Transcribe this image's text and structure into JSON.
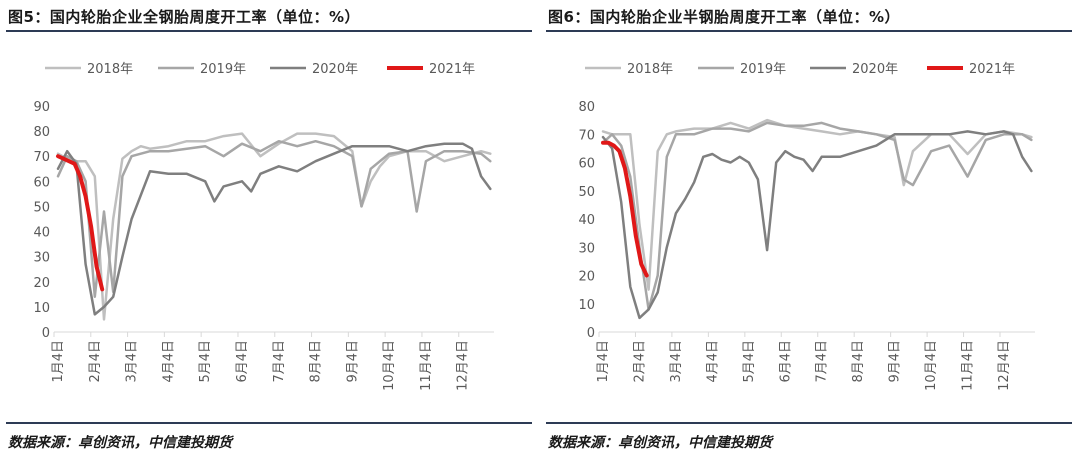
{
  "source_label": "数据来源：卓创资讯，中信建投期货",
  "chart_data": [
    {
      "type": "line",
      "title": "图5：国内轮胎企业全钢胎周度开工率（单位：%）",
      "x_categories": [
        "1月4日",
        "2月4日",
        "3月4日",
        "4月4日",
        "5月4日",
        "6月4日",
        "7月4日",
        "8月4日",
        "9月4日",
        "10月4日",
        "11月4日",
        "12月4日"
      ],
      "ylim": [
        0,
        90
      ],
      "yticks": [
        0,
        10,
        20,
        30,
        40,
        50,
        60,
        70,
        80,
        90
      ],
      "grid": false,
      "legend_position": "top",
      "series": [
        {
          "name": "2018年",
          "color": "#bfbfbf",
          "width": 2.5,
          "x": [
            0,
            0.25,
            0.5,
            0.75,
            1,
            1.25,
            1.5,
            1.75,
            2,
            2.25,
            2.5,
            3,
            3.5,
            4,
            4.5,
            5,
            5.5,
            6,
            6.5,
            7,
            7.5,
            8,
            8.25,
            8.5,
            8.75,
            9,
            9.5,
            10,
            10.5,
            11,
            11.5,
            11.75
          ],
          "y": [
            71,
            69,
            68,
            68,
            62,
            5,
            45,
            69,
            72,
            74,
            73,
            74,
            76,
            76,
            78,
            79,
            70,
            75,
            79,
            79,
            78,
            72,
            50,
            60,
            66,
            70,
            72,
            72,
            68,
            70,
            72,
            71
          ]
        },
        {
          "name": "2019年",
          "color": "#a6a6a6",
          "width": 2.5,
          "x": [
            0,
            0.25,
            0.5,
            0.75,
            1,
            1.25,
            1.5,
            1.75,
            2,
            2.5,
            3,
            3.5,
            4,
            4.5,
            5,
            5.5,
            6,
            6.5,
            7,
            7.5,
            8,
            8.25,
            8.5,
            9,
            9.5,
            9.75,
            10,
            10.5,
            11,
            11.5,
            11.75
          ],
          "y": [
            62,
            70,
            68,
            60,
            14,
            48,
            16,
            62,
            70,
            72,
            72,
            73,
            74,
            70,
            75,
            72,
            76,
            74,
            76,
            74,
            70,
            50,
            65,
            71,
            72,
            48,
            68,
            72,
            72,
            71,
            68
          ]
        },
        {
          "name": "2020年",
          "color": "#7f7f7f",
          "width": 2.5,
          "x": [
            0,
            0.25,
            0.5,
            0.75,
            1,
            1.25,
            1.5,
            1.75,
            2,
            2.5,
            3,
            3.5,
            4,
            4.25,
            4.5,
            5,
            5.25,
            5.5,
            6,
            6.5,
            7,
            7.5,
            8,
            8.5,
            9,
            9.5,
            10,
            10.5,
            11,
            11.25,
            11.5,
            11.75
          ],
          "y": [
            65,
            72,
            67,
            27,
            7,
            10,
            14,
            30,
            45,
            64,
            63,
            63,
            60,
            52,
            58,
            60,
            56,
            63,
            66,
            64,
            68,
            71,
            74,
            74,
            74,
            72,
            74,
            75,
            75,
            73,
            62,
            57
          ]
        },
        {
          "name": "2021年",
          "color": "#e01818",
          "width": 4,
          "x": [
            0,
            0.15,
            0.3,
            0.45,
            0.6,
            0.75,
            0.9,
            1.05,
            1.2
          ],
          "y": [
            70,
            69,
            68,
            67,
            62,
            54,
            42,
            26,
            17
          ]
        }
      ]
    },
    {
      "type": "line",
      "title": "图6：国内轮胎企业半钢胎周度开工率（单位：%）",
      "x_categories": [
        "1月4日",
        "2月4日",
        "3月4日",
        "4月4日",
        "5月4日",
        "6月4日",
        "7月4日",
        "8月4日",
        "9月4日",
        "10月4日",
        "11月4日",
        "12月4日"
      ],
      "ylim": [
        0,
        80
      ],
      "yticks": [
        0,
        10,
        20,
        30,
        40,
        50,
        60,
        70,
        80
      ],
      "grid": false,
      "legend_position": "top",
      "series": [
        {
          "name": "2018年",
          "color": "#bfbfbf",
          "width": 2.5,
          "x": [
            0,
            0.25,
            0.5,
            0.75,
            1,
            1.25,
            1.5,
            1.75,
            2,
            2.5,
            3,
            3.5,
            4,
            4.5,
            5,
            5.5,
            6,
            6.5,
            7,
            7.5,
            8,
            8.25,
            8.5,
            9,
            9.5,
            10,
            10.5,
            11,
            11.5,
            11.75
          ],
          "y": [
            71,
            70,
            70,
            70,
            38,
            15,
            64,
            70,
            71,
            72,
            72,
            74,
            72,
            75,
            73,
            72,
            71,
            70,
            71,
            70,
            69,
            52,
            64,
            70,
            70,
            63,
            70,
            71,
            70,
            69
          ]
        },
        {
          "name": "2019年",
          "color": "#a6a6a6",
          "width": 2.5,
          "x": [
            0,
            0.25,
            0.5,
            0.75,
            1,
            1.25,
            1.5,
            1.75,
            2,
            2.5,
            3,
            3.5,
            4,
            4.5,
            5,
            5.5,
            6,
            6.5,
            7,
            7.5,
            8,
            8.25,
            8.5,
            9,
            9.5,
            10,
            10.5,
            11,
            11.5,
            11.75
          ],
          "y": [
            67,
            70,
            66,
            55,
            30,
            8,
            20,
            62,
            70,
            70,
            72,
            72,
            71,
            74,
            73,
            73,
            74,
            72,
            71,
            70,
            68,
            54,
            52,
            64,
            66,
            55,
            68,
            70,
            70,
            68
          ]
        },
        {
          "name": "2020年",
          "color": "#7f7f7f",
          "width": 2.5,
          "x": [
            0,
            0.25,
            0.5,
            0.75,
            1,
            1.25,
            1.5,
            1.75,
            2,
            2.25,
            2.5,
            2.75,
            3,
            3.25,
            3.5,
            3.75,
            4,
            4.25,
            4.5,
            4.75,
            5,
            5.25,
            5.5,
            5.75,
            6,
            6.5,
            7,
            7.5,
            8,
            8.5,
            9,
            9.5,
            10,
            10.5,
            11,
            11.25,
            11.5,
            11.75
          ],
          "y": [
            69,
            65,
            46,
            16,
            5,
            8,
            14,
            30,
            42,
            47,
            53,
            62,
            63,
            61,
            60,
            62,
            60,
            54,
            29,
            60,
            64,
            62,
            61,
            57,
            62,
            62,
            64,
            66,
            70,
            70,
            70,
            70,
            71,
            70,
            71,
            70,
            62,
            57
          ]
        },
        {
          "name": "2021年",
          "color": "#e01818",
          "width": 4,
          "x": [
            0,
            0.15,
            0.3,
            0.45,
            0.6,
            0.75,
            0.9,
            1.05,
            1.2
          ],
          "y": [
            67,
            67,
            66,
            64,
            58,
            48,
            34,
            24,
            20
          ]
        }
      ]
    }
  ]
}
